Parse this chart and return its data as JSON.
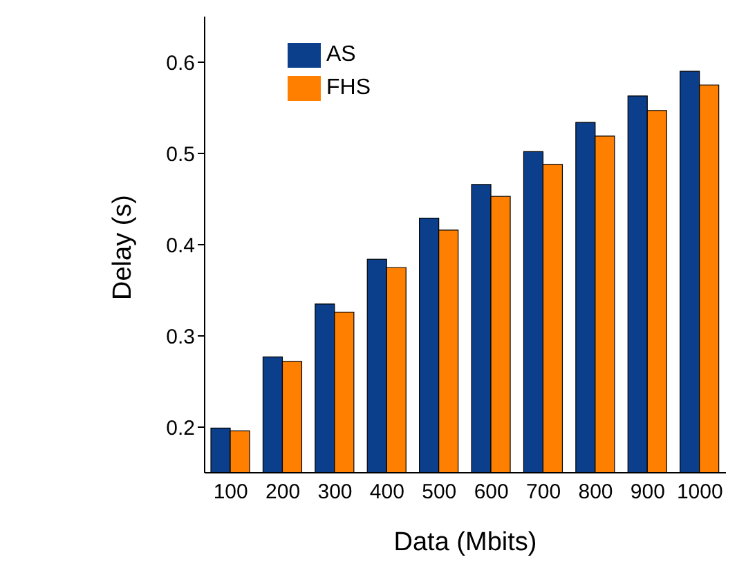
{
  "chart_data": {
    "type": "bar",
    "xlabel": "Data (Mbits)",
    "ylabel": "Delay (s)",
    "categories": [
      "100",
      "200",
      "300",
      "400",
      "500",
      "600",
      "700",
      "800",
      "900",
      "1000"
    ],
    "series": [
      {
        "name": "AS",
        "color": "#0b3f8c",
        "values": [
          0.199,
          0.277,
          0.335,
          0.384,
          0.429,
          0.466,
          0.502,
          0.534,
          0.563,
          0.59
        ]
      },
      {
        "name": "FHS",
        "color": "#ff8000",
        "values": [
          0.196,
          0.272,
          0.326,
          0.375,
          0.416,
          0.453,
          0.488,
          0.519,
          0.547,
          0.575
        ]
      }
    ],
    "ylim": [
      0.15,
      0.65
    ],
    "yticks": [
      0.2,
      0.3,
      0.4,
      0.5,
      0.6
    ],
    "grid": false,
    "legend": "top left"
  }
}
